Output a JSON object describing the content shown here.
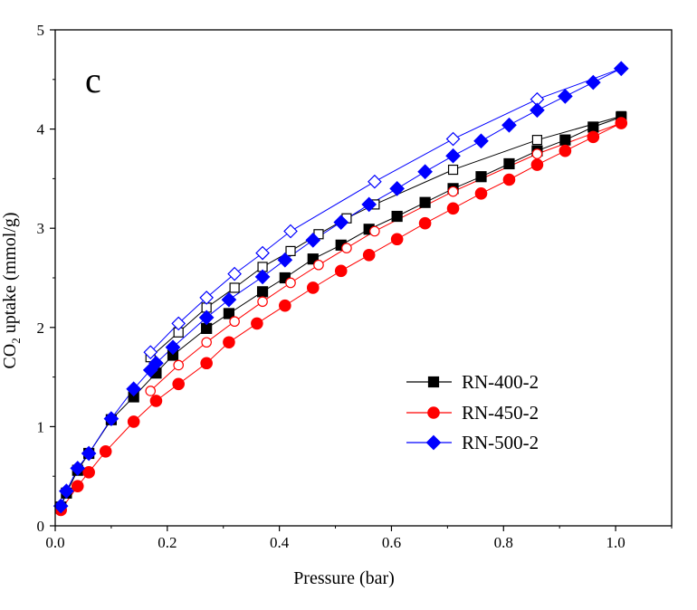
{
  "chart_data": {
    "type": "scatter",
    "panel_label": "c",
    "xlabel": "Pressure (bar)",
    "ylabel_main": "CO",
    "ylabel_sub": "2",
    "ylabel_rest": " uptake (mmol/g)",
    "xlim": [
      0.0,
      1.1
    ],
    "ylim": [
      0,
      5
    ],
    "x_ticks": [
      "0.0",
      "0.2",
      "0.4",
      "0.6",
      "0.8",
      "1.0"
    ],
    "x_tick_values": [
      0.0,
      0.2,
      0.4,
      0.6,
      0.8,
      1.0
    ],
    "y_ticks": [
      "0",
      "1",
      "2",
      "3",
      "4",
      "5"
    ],
    "y_tick_values": [
      0,
      1,
      2,
      3,
      4,
      5
    ],
    "grid": false,
    "legend_position": "bottom-right",
    "series": [
      {
        "name": "RN-400-2",
        "color": "#000000",
        "marker": "square",
        "adsorption": {
          "x": [
            0.01,
            0.02,
            0.04,
            0.06,
            0.1,
            0.14,
            0.18,
            0.21,
            0.27,
            0.31,
            0.37,
            0.41,
            0.46,
            0.51,
            0.56,
            0.61,
            0.66,
            0.71,
            0.76,
            0.81,
            0.86,
            0.91,
            0.96,
            1.01
          ],
          "y": [
            0.19,
            0.33,
            0.56,
            0.73,
            1.07,
            1.3,
            1.54,
            1.72,
            1.99,
            2.14,
            2.36,
            2.5,
            2.69,
            2.83,
            2.99,
            3.12,
            3.26,
            3.4,
            3.52,
            3.65,
            3.78,
            3.89,
            4.02,
            4.12
          ]
        },
        "desorption": {
          "x": [
            0.17,
            0.22,
            0.27,
            0.32,
            0.37,
            0.42,
            0.47,
            0.52,
            0.57,
            0.71,
            0.86,
            1.01
          ],
          "y": [
            1.7,
            1.95,
            2.2,
            2.4,
            2.61,
            2.77,
            2.94,
            3.1,
            3.24,
            3.59,
            3.89,
            4.13
          ]
        }
      },
      {
        "name": "RN-450-2",
        "color": "#ff0000",
        "marker": "circle",
        "adsorption": {
          "x": [
            0.01,
            0.04,
            0.06,
            0.09,
            0.14,
            0.18,
            0.22,
            0.27,
            0.31,
            0.36,
            0.41,
            0.46,
            0.51,
            0.56,
            0.61,
            0.66,
            0.71,
            0.76,
            0.81,
            0.86,
            0.91,
            0.96,
            1.01
          ],
          "y": [
            0.16,
            0.4,
            0.54,
            0.75,
            1.05,
            1.26,
            1.43,
            1.64,
            1.85,
            2.04,
            2.22,
            2.4,
            2.57,
            2.73,
            2.89,
            3.05,
            3.2,
            3.35,
            3.49,
            3.64,
            3.78,
            3.92,
            4.06
          ]
        },
        "desorption": {
          "x": [
            0.17,
            0.22,
            0.27,
            0.32,
            0.37,
            0.42,
            0.47,
            0.52,
            0.57,
            0.71,
            0.86,
            1.01
          ],
          "y": [
            1.36,
            1.62,
            1.85,
            2.06,
            2.26,
            2.45,
            2.63,
            2.8,
            2.97,
            3.37,
            3.75,
            4.06
          ]
        }
      },
      {
        "name": "RN-500-2",
        "color": "#0000ff",
        "marker": "diamond",
        "adsorption": {
          "x": [
            0.01,
            0.02,
            0.04,
            0.06,
            0.1,
            0.14,
            0.17,
            0.18,
            0.21,
            0.27,
            0.31,
            0.37,
            0.41,
            0.46,
            0.51,
            0.56,
            0.61,
            0.66,
            0.71,
            0.76,
            0.81,
            0.86,
            0.91,
            0.96,
            1.01
          ],
          "y": [
            0.2,
            0.35,
            0.58,
            0.73,
            1.08,
            1.38,
            1.57,
            1.64,
            1.8,
            2.1,
            2.28,
            2.51,
            2.68,
            2.88,
            3.06,
            3.24,
            3.4,
            3.57,
            3.73,
            3.88,
            4.04,
            4.19,
            4.33,
            4.47,
            4.61
          ]
        },
        "desorption": {
          "x": [
            0.17,
            0.22,
            0.27,
            0.32,
            0.37,
            0.42,
            0.57,
            0.71,
            0.86,
            1.01
          ],
          "y": [
            1.75,
            2.04,
            2.3,
            2.54,
            2.75,
            2.97,
            3.47,
            3.9,
            4.3,
            4.61
          ]
        }
      }
    ]
  }
}
